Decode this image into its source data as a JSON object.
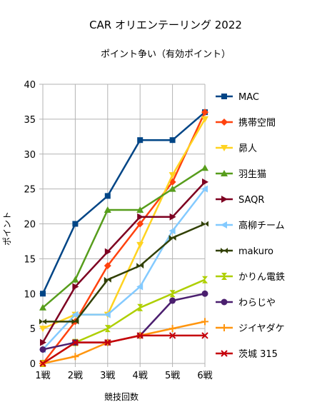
{
  "chart_data": {
    "type": "line",
    "title": "CAR オリエンテーリング 2022",
    "subtitle": "ポイント争い（有効ポイント）",
    "xlabel": "競技回数",
    "ylabel": "ポイント",
    "categories": [
      "1戦",
      "2戦",
      "3戦",
      "4戦",
      "5戦",
      "6戦"
    ],
    "ylim": [
      0,
      40
    ],
    "yticks": [
      0,
      5,
      10,
      15,
      20,
      25,
      30,
      35,
      40
    ],
    "grid": true,
    "legend_position": "right",
    "series": [
      {
        "name": "MAC",
        "color": "#004586",
        "marker": "square",
        "values": [
          10,
          20,
          24,
          32,
          32,
          36
        ]
      },
      {
        "name": "携帯空間",
        "color": "#ff420e",
        "marker": "diamond",
        "values": [
          0,
          6,
          14,
          20,
          26,
          36
        ]
      },
      {
        "name": "昴人",
        "color": "#ffd320",
        "marker": "triangle-down",
        "values": [
          5,
          7,
          7,
          17,
          27,
          35
        ]
      },
      {
        "name": "羽生猫",
        "color": "#579d1c",
        "marker": "triangle-up",
        "values": [
          8,
          12,
          22,
          22,
          25,
          28
        ]
      },
      {
        "name": "SAQR",
        "color": "#7e0021",
        "marker": "triangle-right",
        "values": [
          3,
          11,
          16,
          21,
          21,
          26
        ]
      },
      {
        "name": "高柳チーム",
        "color": "#83caff",
        "marker": "triangle-left",
        "values": [
          2,
          7,
          7,
          11,
          19,
          25
        ]
      },
      {
        "name": "makuro",
        "color": "#314004",
        "marker": "bowtie",
        "values": [
          6,
          6,
          12,
          14,
          18,
          20
        ]
      },
      {
        "name": "かりん電鉄",
        "color": "#aecf00",
        "marker": "hourglass",
        "values": [
          0,
          3,
          5,
          8,
          10,
          12
        ]
      },
      {
        "name": "わらじや",
        "color": "#4b1f6f",
        "marker": "circle",
        "values": [
          2,
          3,
          3,
          4,
          9,
          10
        ]
      },
      {
        "name": "ジイヤダケ",
        "color": "#ff950e",
        "marker": "plus",
        "values": [
          0,
          1,
          3,
          4,
          5,
          6
        ]
      },
      {
        "name": "茨城 315",
        "color": "#c5000b",
        "marker": "x",
        "values": [
          0,
          3,
          3,
          4,
          4,
          4
        ]
      }
    ]
  }
}
